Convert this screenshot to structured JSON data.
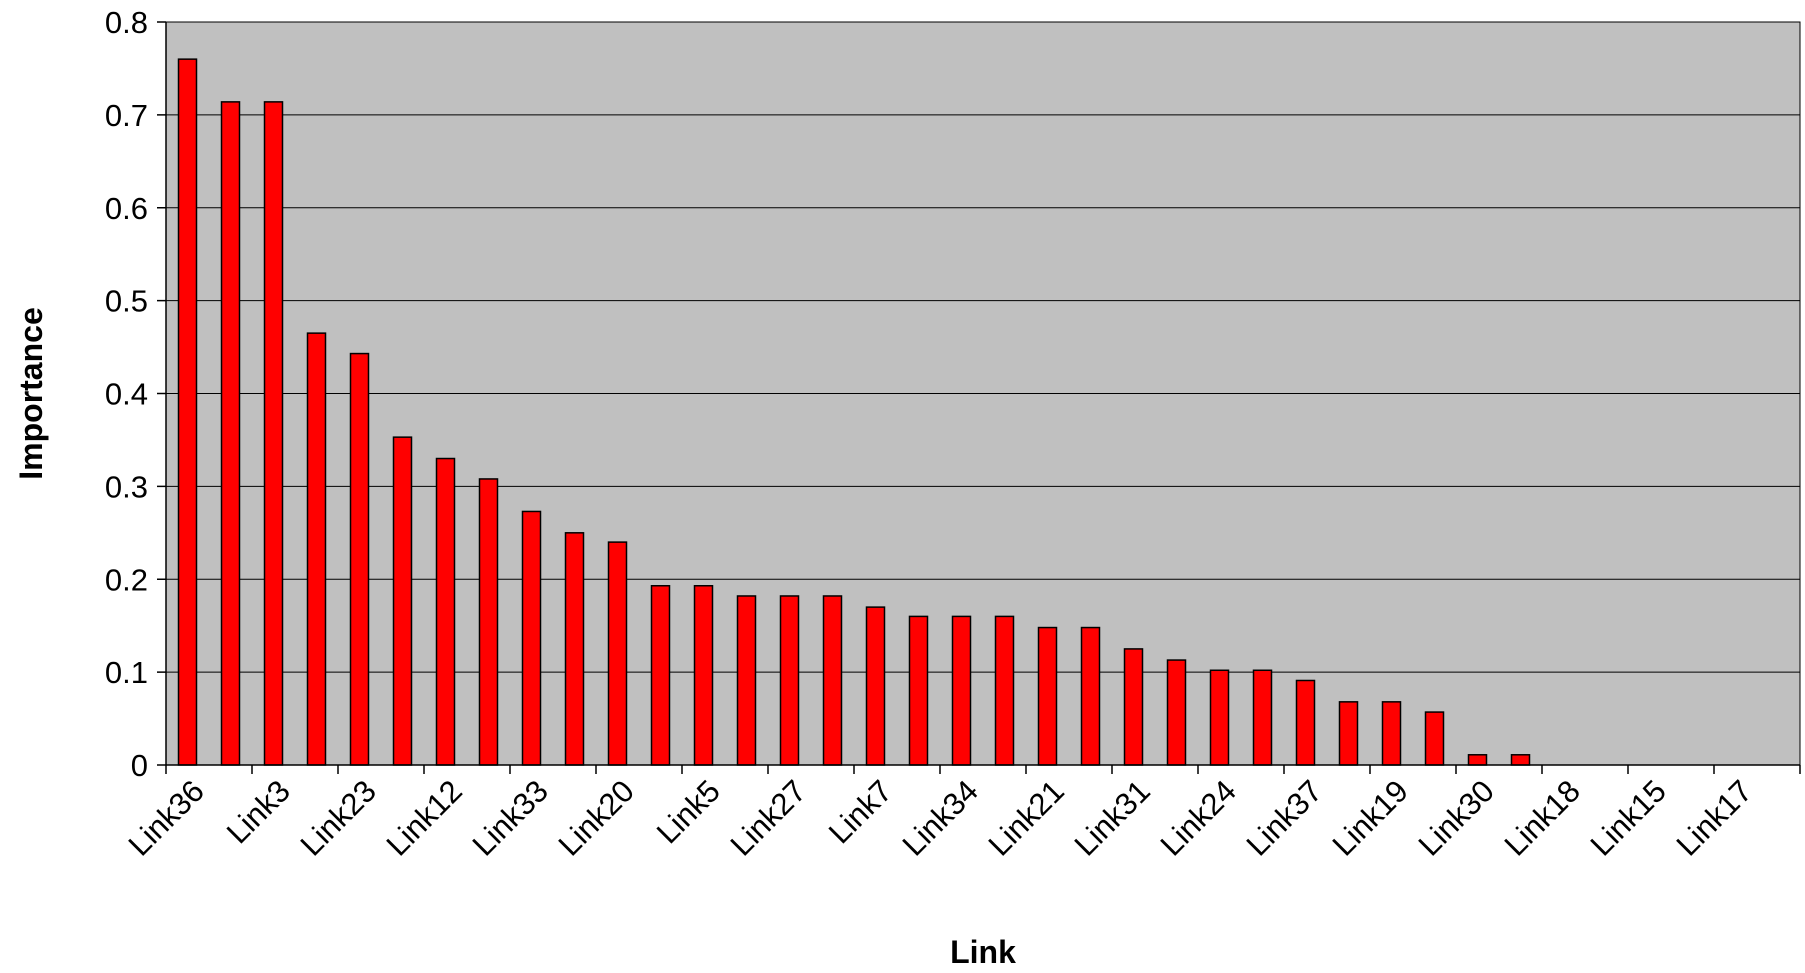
{
  "colors": {
    "plot_background": "#c0c0c0",
    "bar_fill": "#ff0000",
    "bar_stroke": "#000000",
    "gridline": "#000000",
    "axis": "#000000"
  },
  "chart_data": {
    "type": "bar",
    "title": "",
    "xlabel": "Link",
    "ylabel": "Importance",
    "ylim": [
      0,
      0.8
    ],
    "y_ticks": [
      0,
      0.1,
      0.2,
      0.3,
      0.4,
      0.5,
      0.6,
      0.7,
      0.8
    ],
    "y_tick_labels": [
      "0",
      "0.1",
      "0.2",
      "0.3",
      "0.4",
      "0.5",
      "0.6",
      "0.7",
      "0.8"
    ],
    "grid": true,
    "legend": "none",
    "categories": [
      "Link36",
      "",
      "Link3",
      "",
      "Link23",
      "",
      "Link12",
      "",
      "Link33",
      "",
      "Link20",
      "",
      "Link5",
      "",
      "Link27",
      "",
      "Link7",
      "",
      "Link34",
      "",
      "Link21",
      "",
      "Link31",
      "",
      "Link24",
      "",
      "Link37",
      "",
      "Link19",
      "",
      "Link30",
      "",
      "Link18",
      "",
      "Link15",
      "",
      "Link17",
      ""
    ],
    "values": [
      0.76,
      0.714,
      0.714,
      0.465,
      0.443,
      0.353,
      0.33,
      0.308,
      0.273,
      0.25,
      0.24,
      0.193,
      0.193,
      0.182,
      0.182,
      0.182,
      0.17,
      0.16,
      0.16,
      0.16,
      0.148,
      0.148,
      0.125,
      0.113,
      0.102,
      0.102,
      0.091,
      0.068,
      0.068,
      0.057,
      0.011,
      0.011,
      0,
      0,
      0,
      0,
      0,
      0
    ]
  }
}
